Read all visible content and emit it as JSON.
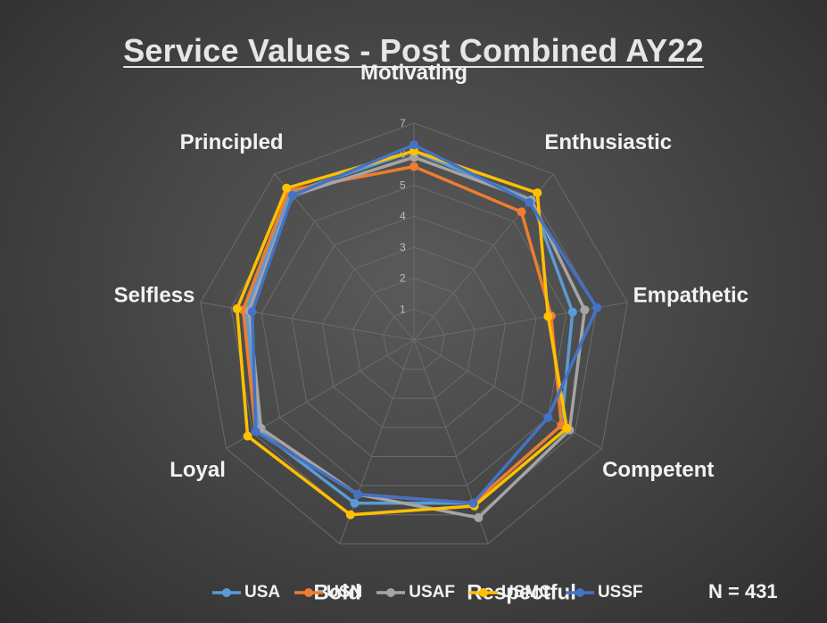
{
  "title": "Service Values - Post Combined AY22",
  "note": "N = 431",
  "chart_data": {
    "type": "radar",
    "title": "Service Values - Post Combined AY22",
    "categories": [
      "Motivating",
      "Enthusiastic",
      "Empathetic",
      "Competent",
      "Respectful",
      "Bold",
      "Loyal",
      "Selfless",
      "Principled"
    ],
    "rlim": [
      0,
      7
    ],
    "ticks": [
      "1",
      "2",
      "3",
      "4",
      "5",
      "6",
      "7"
    ],
    "grid": true,
    "legend_position": "bottom",
    "series": [
      {
        "name": "USA",
        "color": "#5b9bd5",
        "values": [
          6.1,
          5.9,
          5.2,
          5.5,
          5.6,
          5.6,
          5.8,
          5.5,
          6.2
        ]
      },
      {
        "name": "USN",
        "color": "#ed7d31",
        "values": [
          5.6,
          5.4,
          4.5,
          5.5,
          5.6,
          5.3,
          5.9,
          5.6,
          6.3
        ]
      },
      {
        "name": "USAF",
        "color": "#a5a5a5",
        "values": [
          5.9,
          5.9,
          5.6,
          5.8,
          6.1,
          5.3,
          5.7,
          5.4,
          6.1
        ]
      },
      {
        "name": "USMC",
        "color": "#ffc000",
        "values": [
          6.1,
          6.2,
          4.4,
          5.7,
          5.7,
          6.0,
          6.2,
          5.8,
          6.4
        ]
      },
      {
        "name": "USSF",
        "color": "#4472c4",
        "values": [
          6.3,
          5.8,
          6.0,
          5.0,
          5.6,
          5.3,
          5.9,
          5.3,
          6.1
        ]
      }
    ]
  }
}
